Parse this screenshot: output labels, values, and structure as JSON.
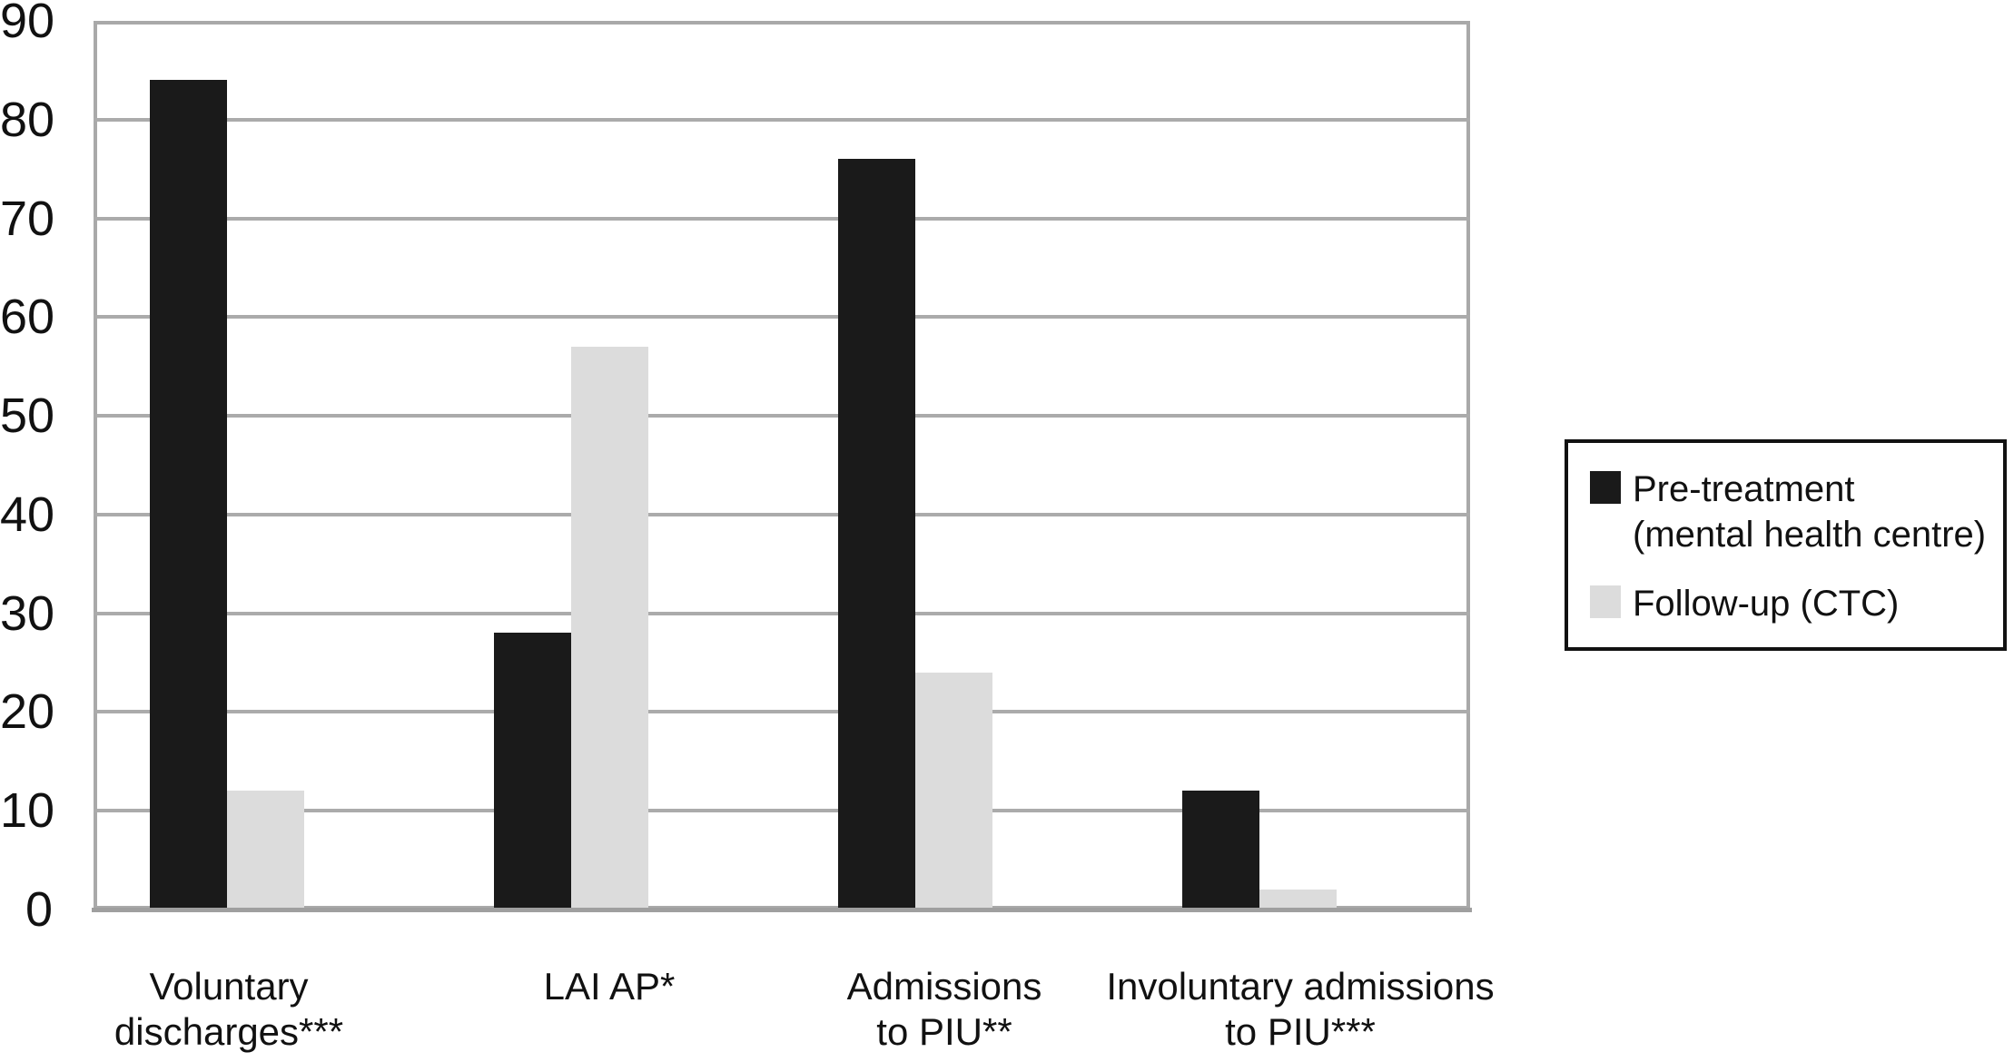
{
  "chart_data": {
    "type": "bar",
    "title": "",
    "xlabel": "",
    "ylabel": "",
    "categories": [
      "Voluntary\ndischarges***",
      "LAI AP*",
      "Admissions\nto PIU**",
      "Involuntary admissions\nto PIU***"
    ],
    "series": [
      {
        "name": "Pre-treatment\n(mental health centre)",
        "color": "#1a1a1a",
        "values": [
          84,
          28,
          76,
          12
        ]
      },
      {
        "name": "Follow-up (CTC)",
        "color": "#dcdcdc",
        "values": [
          12,
          57,
          24,
          2
        ]
      }
    ],
    "ylim": [
      0,
      90
    ],
    "yticks": [
      0,
      10,
      20,
      30,
      40,
      50,
      60,
      70,
      80,
      90
    ],
    "grid": true,
    "gridline_color": "#ababab",
    "axis_color": "#9f9f9f",
    "background": "#ffffff",
    "legend_position": "right-middle",
    "legend_border_color": "#111111"
  }
}
